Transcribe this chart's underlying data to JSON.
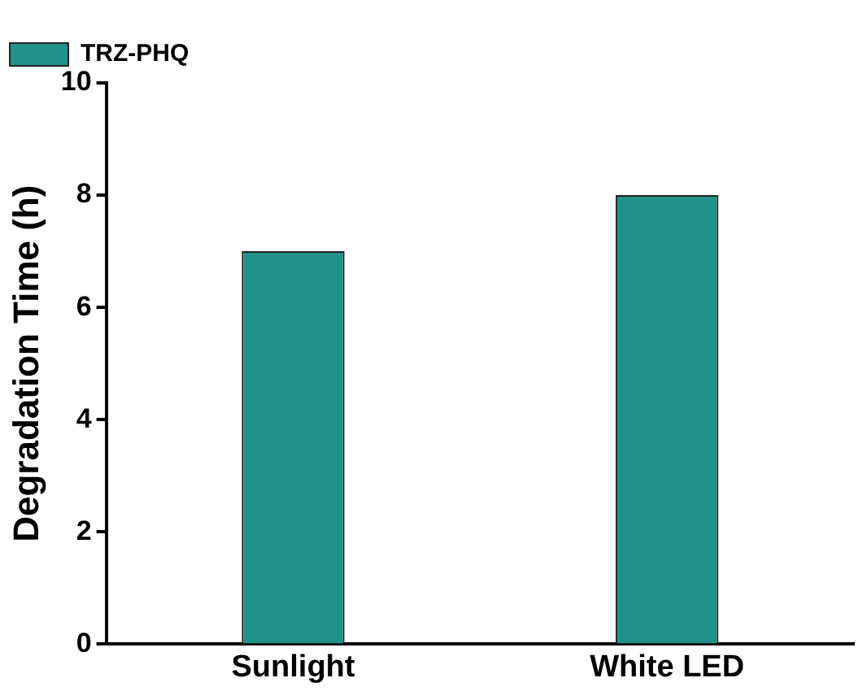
{
  "chart_data": {
    "type": "bar",
    "ylabel": "Degradation Time (h)",
    "categories": [
      "Sunlight",
      "White LED"
    ],
    "series": [
      {
        "name": "TRZ-PHQ",
        "color": "#21918c",
        "values": [
          7,
          8
        ]
      }
    ],
    "ylim": [
      0,
      10
    ],
    "yticks": [
      0,
      2,
      4,
      6,
      8,
      10
    ],
    "grid": false,
    "legend": "top left"
  }
}
